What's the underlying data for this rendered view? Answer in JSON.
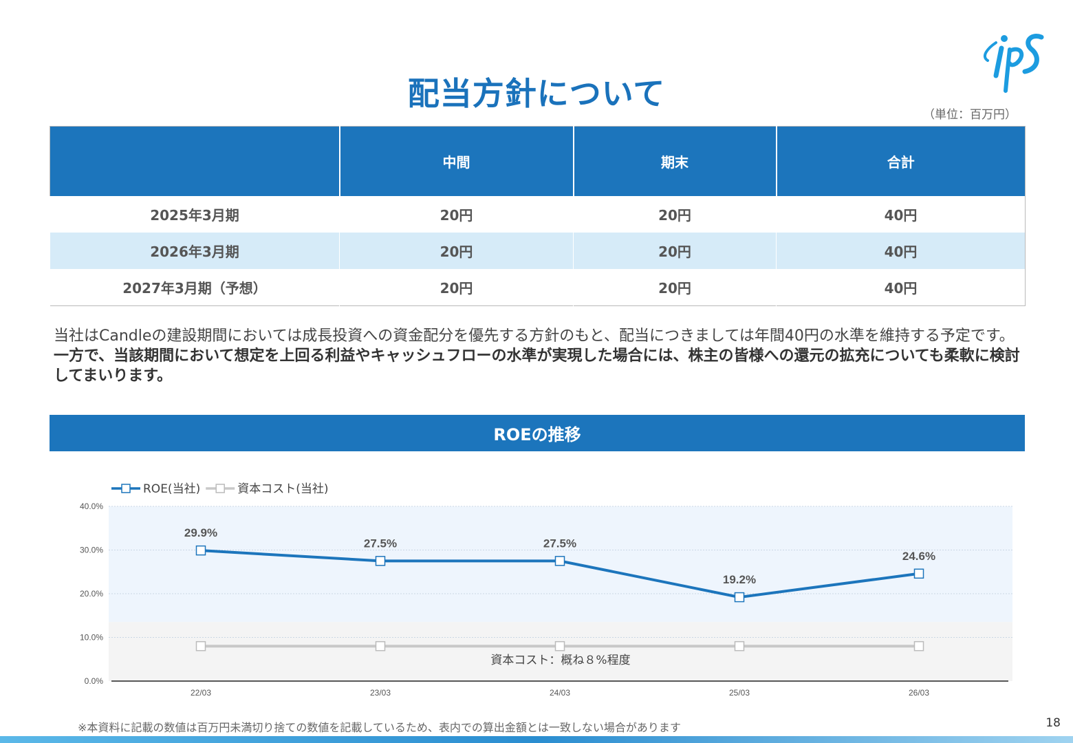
{
  "title": "配当方針について",
  "unit_note": "（単位：百万円）",
  "logo_text": "ips",
  "dividend_table": {
    "headers": [
      "",
      "中間",
      "期末",
      "合計"
    ],
    "rows": [
      {
        "period": "2025年3月期",
        "interim": "20円",
        "year_end": "20円",
        "total": "40円"
      },
      {
        "period": "2026年3月期",
        "interim": "20円",
        "year_end": "20円",
        "total": "40円"
      },
      {
        "period": "2027年3月期（予想）",
        "interim": "20円",
        "year_end": "20円",
        "total": "40円"
      }
    ]
  },
  "policy_text": "当社はCandleの建設期間においては成長投資への資金配分を優先する方針のもと、配当につきましては年間40円の水準を維持する予定です。",
  "policy_text_bold": "一方で、当該期間において想定を上回る利益やキャッシュフローの水準が実現した場合には、株主の皆様への還元の拡充についても柔軟に検討してまいります。",
  "roe_section_title": "ROEの推移",
  "chart_data": {
    "type": "line",
    "categories": [
      "22/03",
      "23/03",
      "24/03",
      "25/03",
      "26/03"
    ],
    "series": [
      {
        "name": "ROE(当社)",
        "values": [
          29.9,
          27.5,
          27.5,
          19.2,
          24.6
        ],
        "color": "#1c75bc",
        "labels": [
          "29.9%",
          "27.5%",
          "27.5%",
          "19.2%",
          "24.6%"
        ]
      },
      {
        "name": "資本コスト(当社)",
        "values": [
          8,
          8,
          8,
          8,
          8
        ],
        "color": "#c8c8c8"
      }
    ],
    "y_ticks": [
      "0.0%",
      "10.0%",
      "20.0%",
      "30.0%",
      "40.0%"
    ],
    "ylim": [
      0,
      40
    ],
    "legend_position": "top-left",
    "annotation": "資本コスト：概ね８%程度",
    "bands": [
      {
        "from": 13.5,
        "to": 40,
        "color": "#eef5fd"
      },
      {
        "from": 0,
        "to": 13.5,
        "color": "#f4f4f4"
      }
    ],
    "grid": true
  },
  "footnote": "※本資料に記載の数値は百万円未満切り捨ての数値を記載しているため、表内での算出金額とは一致しない場合があります",
  "page_number": "18"
}
